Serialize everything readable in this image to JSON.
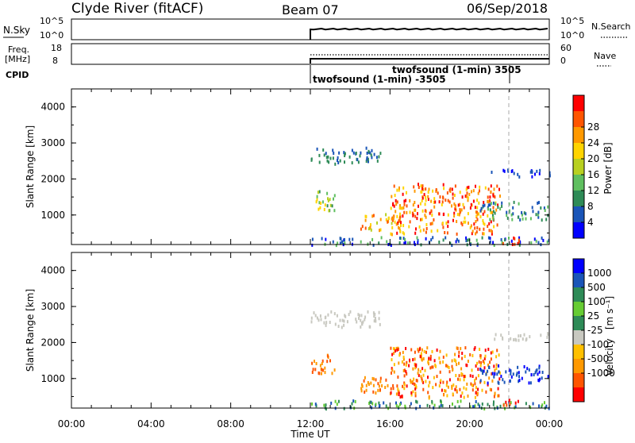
{
  "header": {
    "station": "Clyde River (fitACF)",
    "beam": "Beam 07",
    "date": "06/Sep/2018"
  },
  "strips": {
    "nsky": {
      "label": "N.Sky",
      "ticks_left": [
        "10^5",
        "10^0"
      ],
      "ticks_right": [
        "10^5",
        "10^0"
      ],
      "right_label": "N.Search"
    },
    "freq": {
      "label_line1": "Freq.",
      "label_line2": "[MHz]",
      "ticks_left": [
        "18",
        "8"
      ],
      "ticks_right": [
        "60",
        "0"
      ],
      "right_label": "Nave"
    },
    "cpid": {
      "label": "CPID",
      "prog1": "twofsound (1-min) -3505",
      "prog2": "twofsound (1-min) 3505"
    }
  },
  "colors": {
    "power": [
      "#0000ff",
      "#1a55b8",
      "#2e8b57",
      "#5fbf5f",
      "#b8d020",
      "#ffd400",
      "#ff9900",
      "#ff5500",
      "#ff0000"
    ],
    "velocity": [
      "#ff0000",
      "#ff5500",
      "#ff9900",
      "#ffc000",
      "#c8c8c0",
      "#2e8b57",
      "#66cc33",
      "#2e8b57",
      "#1a55b8",
      "#0000ff"
    ]
  },
  "chart_data": [
    {
      "type": "heatmap",
      "panel": "power",
      "ylabel": "Slant Range [km]",
      "ylim": [
        180,
        4500
      ],
      "yticks": [
        "1000",
        "2000",
        "3000",
        "4000"
      ],
      "xlim_hours": [
        0,
        24
      ],
      "colorbar_title": "Power [dB]",
      "colorbar_ticks": [
        "4",
        "8",
        "12",
        "16",
        "20",
        "24",
        "28"
      ],
      "grid": false,
      "data_start_time": "12:00"
    },
    {
      "type": "heatmap",
      "panel": "velocity",
      "ylabel": "Slant Range [km]",
      "ylim": [
        180,
        4500
      ],
      "yticks": [
        "1000",
        "2000",
        "3000",
        "4000"
      ],
      "xlim_hours": [
        0,
        24
      ],
      "colorbar_title": "Velocity",
      "colorbar_unit": "[m s⁻¹]",
      "colorbar_ticks": [
        "1000",
        "500",
        "100",
        "25",
        "-25",
        "-100",
        "-500",
        "-1000"
      ],
      "grid": false,
      "data_start_time": "12:00"
    }
  ],
  "xaxis": {
    "ticks": [
      "00:00",
      "04:00",
      "08:00",
      "12:00",
      "16:00",
      "20:00",
      "00:00"
    ],
    "label": "Time UT"
  }
}
